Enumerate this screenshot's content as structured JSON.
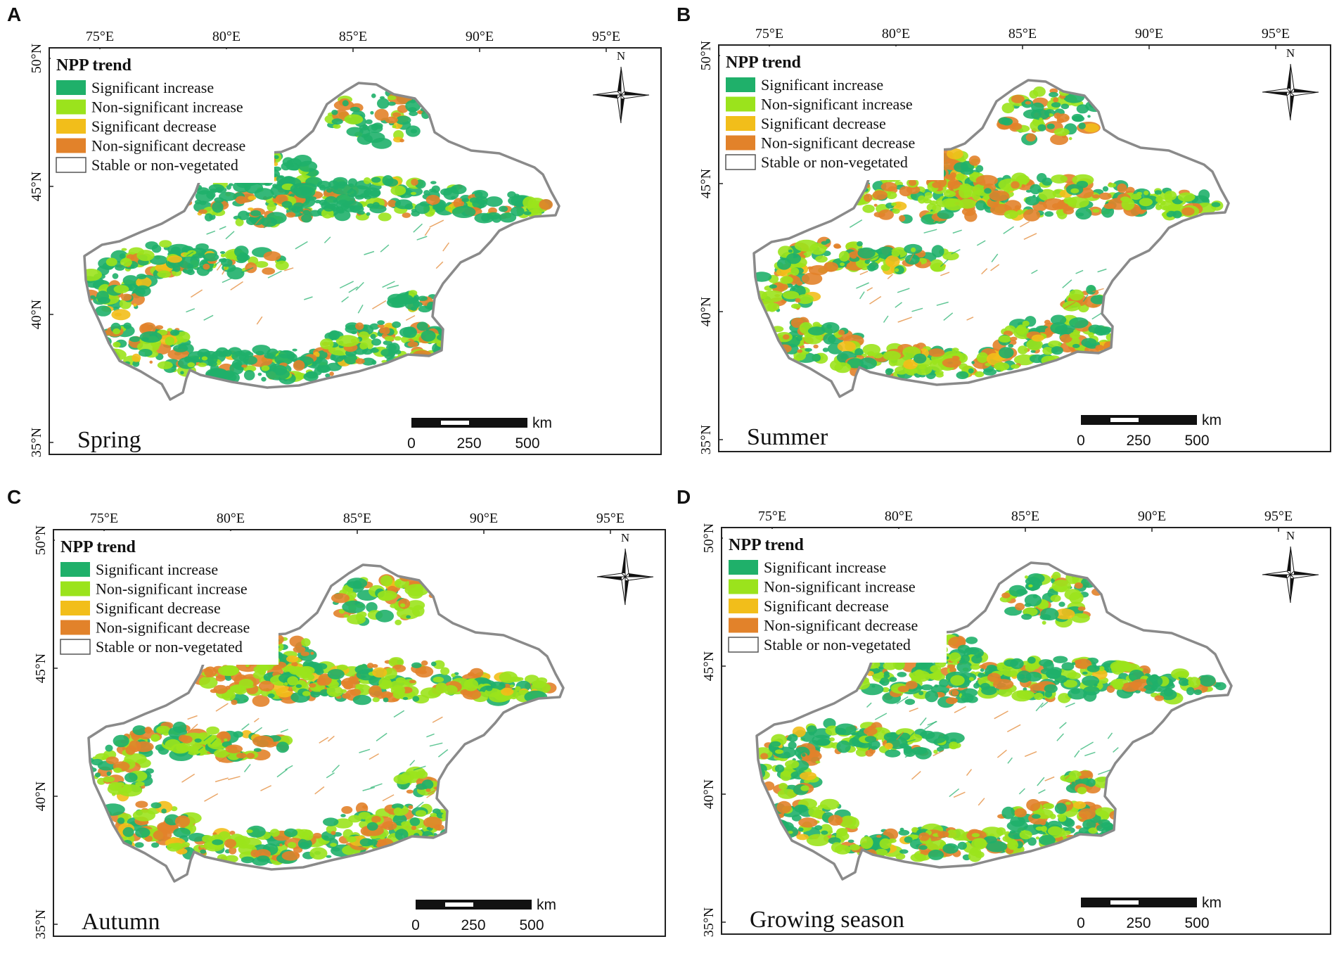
{
  "figure": {
    "legend": {
      "title": "NPP trend",
      "items": [
        {
          "label": "Significant increase",
          "color": "#1fb06a"
        },
        {
          "label": "Non-significant increase",
          "color": "#9be31c"
        },
        {
          "label": "Significant decrease",
          "color": "#f2be1a"
        },
        {
          "label": "Non-significant decrease",
          "color": "#e2822a"
        },
        {
          "label": "Stable or non-vegetated",
          "color": "#ffffff"
        }
      ]
    },
    "lon_ticks": [
      "75°E",
      "80°E",
      "85°E",
      "90°E",
      "95°E"
    ],
    "lat_ticks": [
      "50°N",
      "45°N",
      "40°N",
      "35°N"
    ],
    "north_label": "N",
    "scale_bar": {
      "unit": "km",
      "ticks": [
        "0",
        "250",
        "500"
      ]
    },
    "boundary_color": "#8a8a8a",
    "panels": [
      {
        "letter": "A",
        "season": "Spring"
      },
      {
        "letter": "B",
        "season": "Summer"
      },
      {
        "letter": "C",
        "season": "Autumn"
      },
      {
        "letter": "D",
        "season": "Growing season"
      }
    ]
  }
}
